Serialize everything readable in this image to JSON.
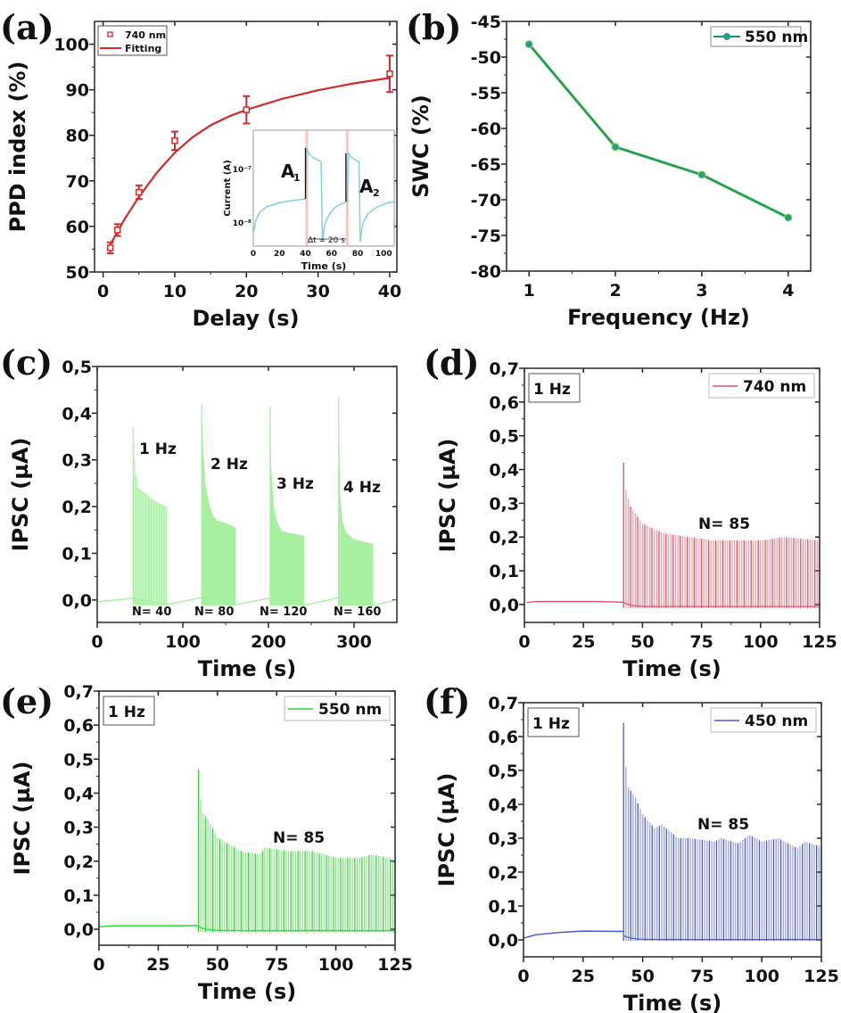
{
  "chart_data": [
    {
      "panel_label": "(a)",
      "type": "scatter",
      "xlabel": "Delay (s)",
      "ylabel": "PPD index (%)",
      "xlim": [
        -1.2,
        41
      ],
      "ylim": [
        50,
        105
      ],
      "xticks": [
        0,
        10,
        20,
        30,
        40
      ],
      "xtick_labels": [
        "0",
        "10",
        "20",
        "30",
        "40"
      ],
      "yticks": [
        50,
        60,
        70,
        80,
        90,
        100
      ],
      "ytick_labels": [
        "50",
        "60",
        "70",
        "80",
        "90",
        "100"
      ],
      "grid": false,
      "legend_position": "top-left",
      "color": "#d42a2a",
      "series": [
        {
          "name": "740 nm",
          "kind": "markers-errorbars",
          "x": [
            1,
            2,
            5,
            10,
            20,
            40
          ],
          "y": [
            55.3,
            59.2,
            67.5,
            78.8,
            85.6,
            93.5
          ],
          "err": [
            1.2,
            1.3,
            1.5,
            2.0,
            3.0,
            4.0
          ]
        },
        {
          "name": "Fitting",
          "kind": "line",
          "x": [
            1,
            2,
            3,
            5,
            7.5,
            10,
            12.5,
            15,
            17.5,
            20,
            25,
            30,
            35,
            40
          ],
          "y": [
            56.0,
            58.8,
            61.6,
            66.5,
            71.8,
            76.2,
            79.6,
            82.2,
            84.1,
            85.6,
            88.0,
            89.9,
            91.4,
            92.6
          ]
        }
      ],
      "inset": {
        "xlabel": "Time (s)",
        "ylabel": "Current (A)",
        "xlim": [
          0,
          108
        ],
        "ylim_log10": [
          -8.43,
          -6.27
        ],
        "xticks": [
          0,
          20,
          40,
          60,
          80,
          100
        ],
        "xtick_labels": [
          "0",
          "20",
          "40",
          "60",
          "80",
          "100"
        ],
        "yticks_log10": [
          -8,
          -7
        ],
        "ytick_labels": [
          "10⁻⁸",
          "10⁻⁷"
        ],
        "color": "#7fd3d6",
        "marker_color": "#f4a0a0",
        "pulse_markers_x": [
          41,
          72
        ],
        "curve_x": [
          0,
          2,
          5,
          10,
          20,
          30,
          40,
          41,
          43,
          46,
          50,
          52,
          53,
          55,
          58,
          62,
          66,
          72,
          73,
          75,
          78,
          81,
          82,
          84,
          88,
          95,
          102,
          108
        ],
        "curve_log10": [
          -8.2,
          -7.95,
          -7.8,
          -7.7,
          -7.62,
          -7.58,
          -7.55,
          -6.62,
          -6.72,
          -6.78,
          -6.83,
          -6.86,
          -8.35,
          -8.0,
          -7.85,
          -7.72,
          -7.66,
          -7.6,
          -6.7,
          -6.77,
          -6.82,
          -6.86,
          -8.35,
          -8.0,
          -7.82,
          -7.7,
          -7.63,
          -7.6
        ],
        "annotations": [
          "A",
          "1",
          "A",
          "2",
          "Δt = 20 s"
        ]
      }
    },
    {
      "panel_label": "(b)",
      "type": "line",
      "xlabel": "Frequency (Hz)",
      "ylabel": "SWC (%)",
      "xlim": [
        0.74,
        4.26
      ],
      "ylim": [
        -80,
        -45
      ],
      "xticks": [
        1,
        2,
        3,
        4
      ],
      "xtick_labels": [
        "1",
        "2",
        "3",
        "4"
      ],
      "yticks": [
        -80,
        -75,
        -70,
        -65,
        -60,
        -55,
        -50,
        -45
      ],
      "ytick_labels": [
        "-80",
        "-75",
        "-70",
        "-65",
        "-60",
        "-55",
        "-50",
        "-45"
      ],
      "grid": false,
      "legend_position": "top-right",
      "color": "#1f8a7a",
      "series": [
        {
          "name": "550 nm",
          "x": [
            1,
            2,
            3,
            4
          ],
          "y": [
            -48.2,
            -62.6,
            -66.5,
            -72.5
          ]
        }
      ]
    },
    {
      "panel_label": "(c)",
      "type": "line",
      "xlabel": "Time (s)",
      "ylabel": "IPSC (µA)",
      "xlim": [
        0,
        350
      ],
      "ylim": [
        -0.048,
        0.5
      ],
      "xticks": [
        0,
        100,
        200,
        300
      ],
      "xtick_labels": [
        "0",
        "100",
        "200",
        "300"
      ],
      "yticks": [
        0,
        0.1,
        0.2,
        0.3,
        0.4,
        0.5
      ],
      "ytick_labels": [
        "0,0",
        "0,1",
        "0,2",
        "0,3",
        "0,4",
        "0,5"
      ],
      "grid": false,
      "color": "#a6f0a0",
      "baseline": [
        [
          0,
          -0.004
        ],
        [
          42,
          0.004
        ],
        [
          81,
          -0.01
        ],
        [
          122,
          0.005
        ],
        [
          161,
          -0.01
        ],
        [
          202,
          0.004
        ],
        [
          241,
          -0.012
        ],
        [
          282,
          0.005
        ],
        [
          321,
          -0.012
        ],
        [
          350,
          0.0
        ]
      ],
      "pulse_min": -0.012,
      "trains": [
        {
          "frequency_hz": 1,
          "start": 42,
          "n": 40,
          "label": "1 Hz",
          "count_label": "N= 40",
          "envelope": [
            [
              42,
              0.37
            ],
            [
              43,
              0.33
            ],
            [
              45,
              0.27
            ],
            [
              48,
              0.24
            ],
            [
              55,
              0.23
            ],
            [
              65,
              0.215
            ],
            [
              75,
              0.205
            ],
            [
              81,
              0.2
            ]
          ]
        },
        {
          "frequency_hz": 2,
          "start": 122,
          "n": 80,
          "label": "2 Hz",
          "count_label": "N= 80",
          "envelope": [
            [
              122,
              0.42
            ],
            [
              123,
              0.34
            ],
            [
              126,
              0.25
            ],
            [
              130,
              0.21
            ],
            [
              135,
              0.18
            ],
            [
              140,
              0.17
            ],
            [
              150,
              0.165
            ],
            [
              161,
              0.155
            ]
          ]
        },
        {
          "frequency_hz": 3,
          "start": 202,
          "n": 120,
          "label": "3 Hz",
          "count_label": "N= 120",
          "envelope": [
            [
              202,
              0.415
            ],
            [
              203,
              0.28
            ],
            [
              206,
              0.2
            ],
            [
              210,
              0.165
            ],
            [
              215,
              0.148
            ],
            [
              225,
              0.143
            ],
            [
              241,
              0.138
            ]
          ]
        },
        {
          "frequency_hz": 4,
          "start": 282,
          "n": 160,
          "label": "4 Hz",
          "count_label": "N= 160",
          "envelope": [
            [
              282,
              0.435
            ],
            [
              283,
              0.23
            ],
            [
              286,
              0.17
            ],
            [
              290,
              0.145
            ],
            [
              300,
              0.13
            ],
            [
              321,
              0.12
            ]
          ]
        }
      ]
    },
    {
      "panel_label": "(d)",
      "type": "line",
      "xlabel": "Time (s)",
      "ylabel": "IPSC (µA)",
      "xlim": [
        0,
        125
      ],
      "ylim": [
        -0.053,
        0.7
      ],
      "xticks": [
        0,
        25,
        50,
        75,
        100,
        125
      ],
      "xtick_labels": [
        "0",
        "25",
        "50",
        "75",
        "100",
        "125"
      ],
      "yticks": [
        0,
        0.1,
        0.2,
        0.3,
        0.4,
        0.5,
        0.6,
        0.7
      ],
      "ytick_labels": [
        "0,0",
        "0,1",
        "0,2",
        "0,3",
        "0,4",
        "0,5",
        "0,6",
        "0,7"
      ],
      "grid": false,
      "legend_position": "top-right",
      "freq_box": "1 Hz",
      "count_label": "N= 85",
      "color": "#e0505e",
      "series_name": "740 nm",
      "baseline": [
        [
          1,
          0.006
        ],
        [
          5,
          0.009
        ],
        [
          30,
          0.009
        ],
        [
          42,
          0.007
        ]
      ],
      "pulse_min": -0.01,
      "train": {
        "frequency_hz": 1,
        "start": 42,
        "n": 85,
        "envelope": [
          [
            42,
            0.42
          ],
          [
            43,
            0.34
          ],
          [
            45,
            0.29
          ],
          [
            50,
            0.24
          ],
          [
            56,
            0.22
          ],
          [
            60,
            0.21
          ],
          [
            70,
            0.2
          ],
          [
            80,
            0.19
          ],
          [
            90,
            0.19
          ],
          [
            100,
            0.19
          ],
          [
            110,
            0.2
          ],
          [
            125,
            0.19
          ]
        ]
      }
    },
    {
      "panel_label": "(e)",
      "type": "line",
      "xlabel": "Time (s)",
      "ylabel": "IPSC (µA)",
      "xlim": [
        0,
        125
      ],
      "ylim": [
        -0.047,
        0.7
      ],
      "xticks": [
        0,
        25,
        50,
        75,
        100,
        125
      ],
      "xtick_labels": [
        "0",
        "25",
        "50",
        "75",
        "100",
        "125"
      ],
      "yticks": [
        0,
        0.1,
        0.2,
        0.3,
        0.4,
        0.5,
        0.6,
        0.7
      ],
      "ytick_labels": [
        "0,0",
        "0,1",
        "0,2",
        "0,3",
        "0,4",
        "0,5",
        "0,6",
        "0,7"
      ],
      "grid": false,
      "legend_position": "top-right",
      "freq_box": "1 Hz",
      "count_label": "N= 85",
      "color": "#33d633",
      "series_name": "550 nm",
      "baseline": [
        [
          0,
          0.007
        ],
        [
          5,
          0.01
        ],
        [
          30,
          0.01
        ],
        [
          42,
          0.011
        ]
      ],
      "pulse_min": -0.008,
      "train": {
        "frequency_hz": 1,
        "start": 42,
        "n": 85,
        "envelope": [
          [
            42,
            0.47
          ],
          [
            43,
            0.38
          ],
          [
            44,
            0.34
          ],
          [
            47,
            0.31
          ],
          [
            50,
            0.27
          ],
          [
            55,
            0.25
          ],
          [
            60,
            0.23
          ],
          [
            68,
            0.22
          ],
          [
            70,
            0.24
          ],
          [
            80,
            0.23
          ],
          [
            90,
            0.23
          ],
          [
            100,
            0.21
          ],
          [
            110,
            0.21
          ],
          [
            115,
            0.22
          ],
          [
            125,
            0.205
          ]
        ]
      }
    },
    {
      "panel_label": "(f)",
      "type": "line",
      "xlabel": "Time (s)",
      "ylabel": "IPSC (µA)",
      "xlim": [
        0,
        125
      ],
      "ylim": [
        -0.05,
        0.7
      ],
      "xticks": [
        0,
        25,
        50,
        75,
        100,
        125
      ],
      "xtick_labels": [
        "0",
        "25",
        "50",
        "75",
        "100",
        "125"
      ],
      "yticks": [
        0,
        0.1,
        0.2,
        0.3,
        0.4,
        0.5,
        0.6,
        0.7
      ],
      "ytick_labels": [
        "0,0",
        "0,1",
        "0,2",
        "0,3",
        "0,4",
        "0,5",
        "0,6",
        "0,7"
      ],
      "grid": false,
      "legend_position": "top-right",
      "freq_box": "1 Hz",
      "count_label": "N= 85",
      "color": "#4456e0",
      "series_name": "450 nm",
      "baseline": [
        [
          0,
          0.005
        ],
        [
          5,
          0.015
        ],
        [
          15,
          0.022
        ],
        [
          25,
          0.026
        ],
        [
          42,
          0.025
        ]
      ],
      "pulse_min": -0.003,
      "train": {
        "frequency_hz": 1,
        "start": 42,
        "n": 85,
        "envelope": [
          [
            42,
            0.64
          ],
          [
            43,
            0.51
          ],
          [
            44,
            0.45
          ],
          [
            47,
            0.42
          ],
          [
            50,
            0.37
          ],
          [
            55,
            0.33
          ],
          [
            58,
            0.34
          ],
          [
            65,
            0.3
          ],
          [
            70,
            0.3
          ],
          [
            80,
            0.29
          ],
          [
            83,
            0.3
          ],
          [
            90,
            0.285
          ],
          [
            95,
            0.31
          ],
          [
            100,
            0.29
          ],
          [
            107,
            0.3
          ],
          [
            115,
            0.27
          ],
          [
            118,
            0.29
          ],
          [
            125,
            0.275
          ]
        ]
      }
    }
  ]
}
